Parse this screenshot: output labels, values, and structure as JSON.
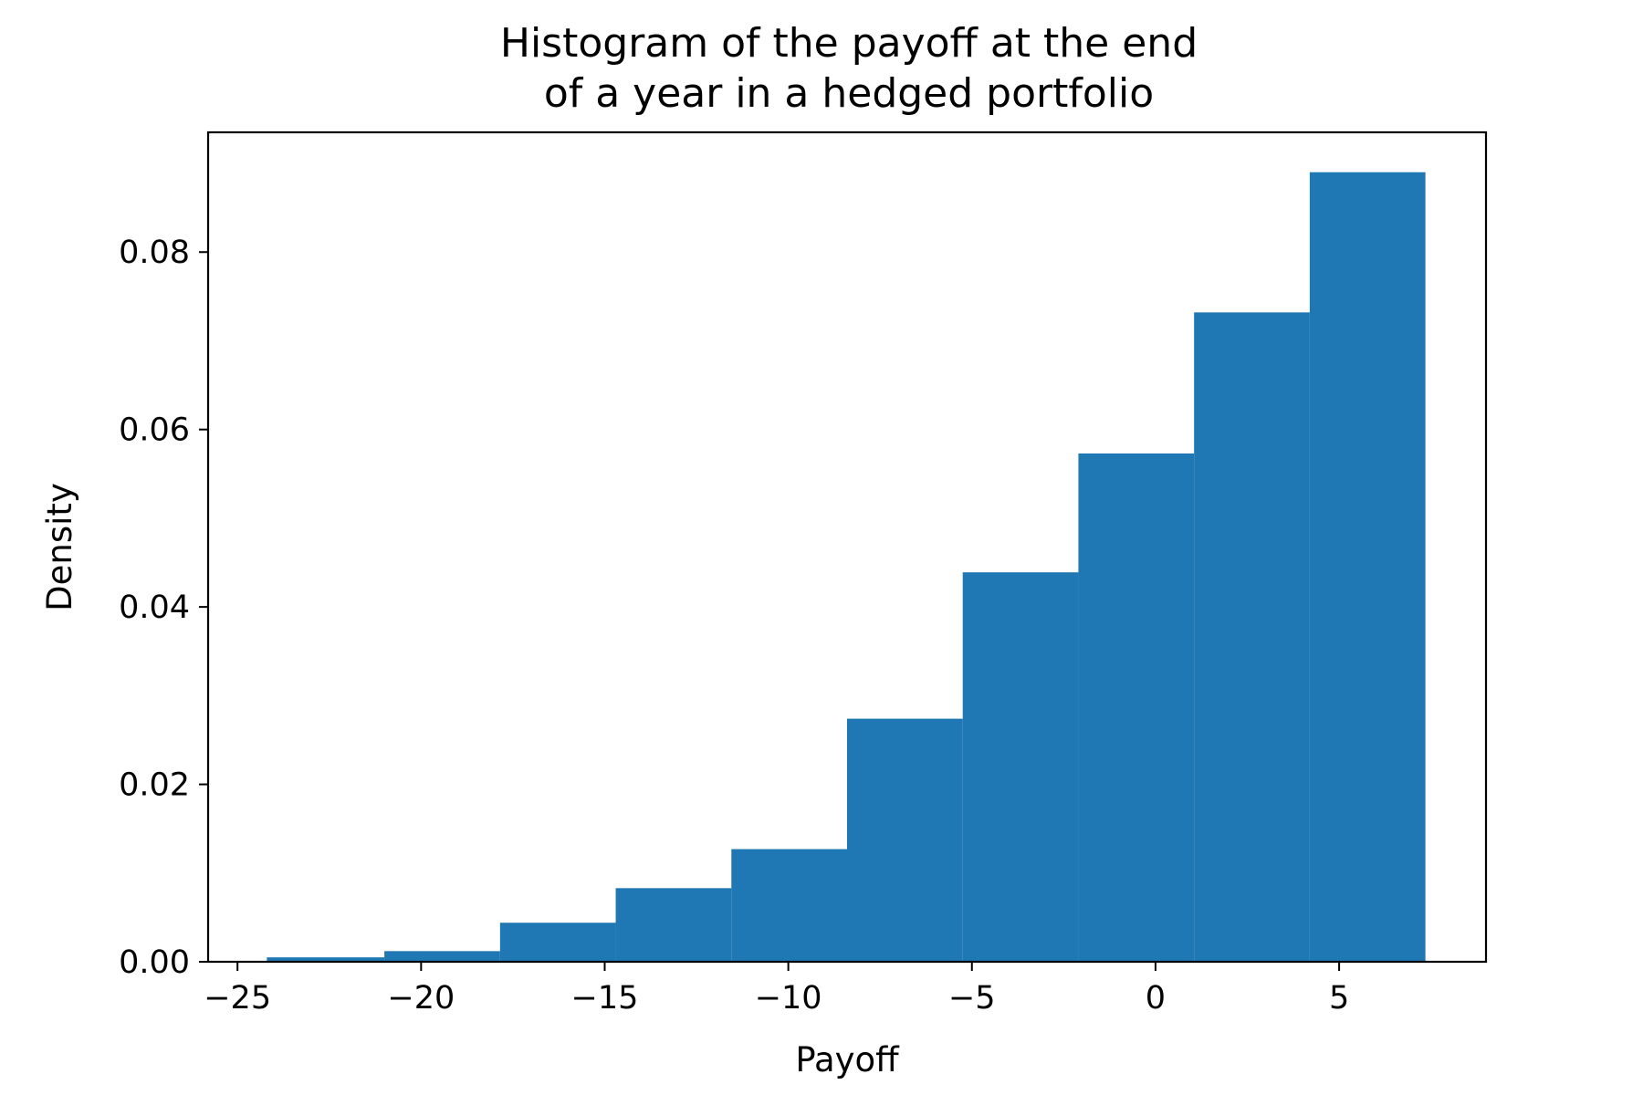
{
  "chart_data": {
    "type": "bar",
    "subtype": "histogram",
    "title_lines": [
      "Histogram of the payoff at the end",
      "of a year in a hedged portfolio"
    ],
    "xlabel": "Payoff",
    "ylabel": "Density",
    "xlim": [
      -25.8,
      9.0
    ],
    "ylim": [
      0,
      0.0935
    ],
    "bins": [
      {
        "x0": -24.2,
        "x1": -21.0,
        "density": 0.0005
      },
      {
        "x0": -21.0,
        "x1": -17.85,
        "density": 0.0012
      },
      {
        "x0": -17.85,
        "x1": -14.7,
        "density": 0.0044
      },
      {
        "x0": -14.7,
        "x1": -11.55,
        "density": 0.0083
      },
      {
        "x0": -11.55,
        "x1": -8.4,
        "density": 0.0127
      },
      {
        "x0": -8.4,
        "x1": -5.25,
        "density": 0.0274
      },
      {
        "x0": -5.25,
        "x1": -2.1,
        "density": 0.0439
      },
      {
        "x0": -2.1,
        "x1": 1.05,
        "density": 0.0573
      },
      {
        "x0": 1.05,
        "x1": 4.2,
        "density": 0.0732
      },
      {
        "x0": 4.2,
        "x1": 7.35,
        "density": 0.089
      }
    ],
    "x_ticks": [
      {
        "value": -25,
        "label": "−25"
      },
      {
        "value": -20,
        "label": "−20"
      },
      {
        "value": -15,
        "label": "−15"
      },
      {
        "value": -10,
        "label": "−10"
      },
      {
        "value": -5,
        "label": "−5"
      },
      {
        "value": 0,
        "label": "0"
      },
      {
        "value": 5,
        "label": "5"
      }
    ],
    "y_ticks": [
      {
        "value": 0.0,
        "label": "0.00"
      },
      {
        "value": 0.02,
        "label": "0.02"
      },
      {
        "value": 0.04,
        "label": "0.04"
      },
      {
        "value": 0.06,
        "label": "0.06"
      },
      {
        "value": 0.08,
        "label": "0.08"
      }
    ],
    "bar_color": "#1f77b4",
    "grid": false,
    "legend": "none"
  }
}
